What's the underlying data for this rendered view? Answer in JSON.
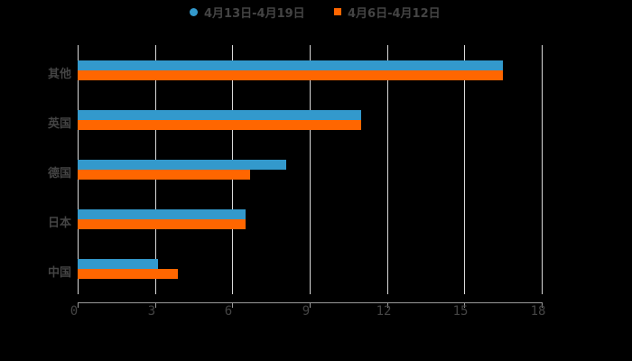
{
  "chart_data": {
    "type": "bar",
    "orientation": "horizontal",
    "title": "",
    "xlabel": "",
    "ylabel": "",
    "categories": [
      "其他",
      "英国",
      "德国",
      "日本",
      "中国"
    ],
    "series": [
      {
        "name": "4月13日-4月19日",
        "color": "#3399cc",
        "values": [
          16.5,
          11.0,
          8.1,
          6.5,
          3.1
        ]
      },
      {
        "name": "4月6日-4月12日",
        "color": "#ff6600",
        "values": [
          16.5,
          11.0,
          6.7,
          6.5,
          3.9
        ]
      }
    ],
    "xlim": [
      0,
      18
    ],
    "xticks": [
      "0",
      "3",
      "6",
      "9",
      "12",
      "15",
      "18"
    ],
    "grid": true,
    "legend_position": "top"
  },
  "legend": {
    "items": [
      {
        "label": "4月13日-4月19日",
        "color": "#3399cc",
        "shape": "circle"
      },
      {
        "label": "4月6日-4月12日",
        "color": "#ff6600",
        "shape": "square"
      }
    ]
  }
}
